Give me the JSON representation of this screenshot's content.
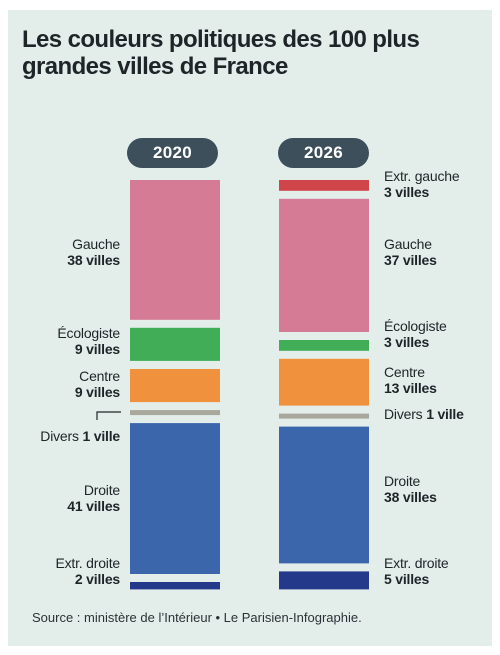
{
  "title": "Les couleurs politiques des 100 plus grandes villes de France",
  "source": "Source : ministère de l’Intérieur • Le Parisien-Infographie.",
  "chart_data": {
    "type": "bar",
    "orientation": "stacked-vertical",
    "categories": [
      "2020",
      "2026"
    ],
    "unit": "villes",
    "total": 100,
    "series": [
      {
        "name": "Extr. gauche",
        "color": "#d0454a",
        "values": [
          0,
          3
        ],
        "labels": [
          "",
          "3 villes"
        ]
      },
      {
        "name": "Gauche",
        "color": "#d57b95",
        "values": [
          38,
          37
        ],
        "labels": [
          "38 villes",
          "37 villes"
        ]
      },
      {
        "name": "Écologiste",
        "color": "#41ad57",
        "values": [
          9,
          3
        ],
        "labels": [
          "9 villes",
          "3 villes"
        ]
      },
      {
        "name": "Centre",
        "color": "#f0913d",
        "values": [
          9,
          13
        ],
        "labels": [
          "9 villes",
          "13 villes"
        ]
      },
      {
        "name": "Divers",
        "color": "#a8a89c",
        "values": [
          1,
          1
        ],
        "labels": [
          "1 ville",
          "1 ville"
        ]
      },
      {
        "name": "Droite",
        "color": "#3b66ac",
        "values": [
          41,
          38
        ],
        "labels": [
          "41 villes",
          "38 villes"
        ]
      },
      {
        "name": "Extr. droite",
        "color": "#25398a",
        "values": [
          2,
          5
        ],
        "labels": [
          "2 villes",
          "5 villes"
        ]
      }
    ]
  }
}
